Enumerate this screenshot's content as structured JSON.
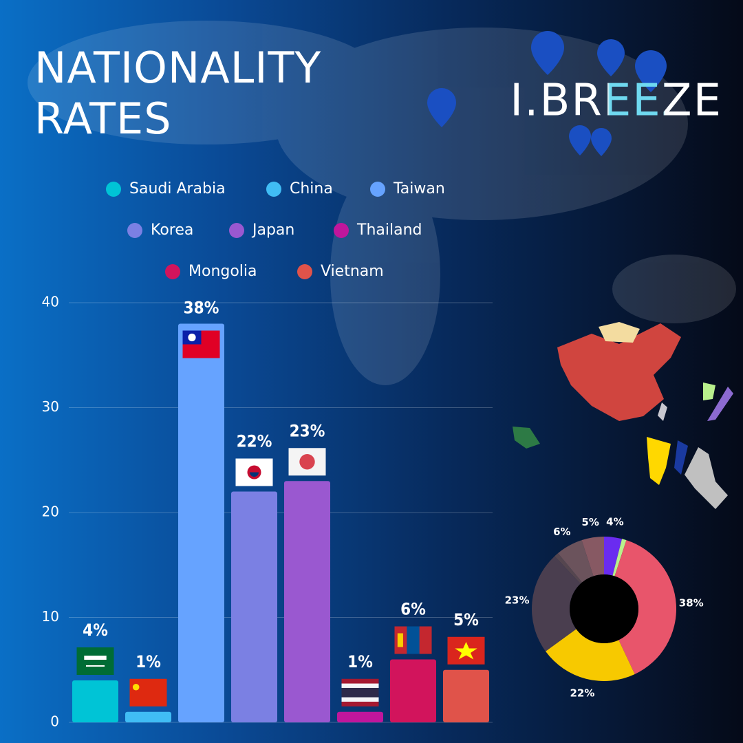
{
  "brand": "I.BREEZE",
  "chart_data": [
    {
      "type": "bar",
      "title": "NATIONALITY RATES",
      "categories": [
        "Saudi Arabia",
        "China",
        "Taiwan",
        "Korea",
        "Japan",
        "Thailand",
        "Mongolia",
        "Vietnam"
      ],
      "values": [
        4,
        1,
        38,
        22,
        23,
        1,
        6,
        5
      ],
      "value_labels": [
        "4%",
        "1%",
        "38%",
        "22%",
        "23%",
        "1%",
        "6%",
        "5%"
      ],
      "colors": [
        "#00c4d6",
        "#40bdf5",
        "#66a3ff",
        "#7b80e3",
        "#9a58d0",
        "#c0169c",
        "#d2145c",
        "#e0534a"
      ],
      "ylim": [
        0,
        40
      ],
      "yticks": [
        0,
        10,
        20,
        30,
        40
      ],
      "grid": true
    },
    {
      "type": "donut",
      "values": [
        4,
        1,
        38,
        22,
        23,
        1,
        6,
        5
      ],
      "value_labels": [
        "4%",
        null,
        "38%",
        "22%",
        "23%",
        null,
        "6%",
        "5%"
      ],
      "colors": [
        "#6a2cf0",
        "#b9f08c",
        "#e8556b",
        "#f7c900",
        "#4a3e4f",
        "#55464f",
        "#6b535c",
        "#875963"
      ]
    }
  ]
}
